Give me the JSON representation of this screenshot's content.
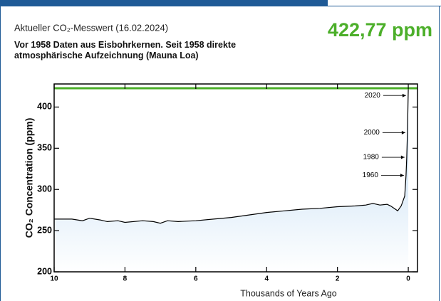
{
  "header": {
    "caption": "Aktueller CO₂-Messwert (16.02.2024)",
    "current_label": "422,77 ppm",
    "note": "Vor 1958 Daten aus Eisbohrkernen. Seit 1958 direkte atmosphärische Aufzeichnung (Mauna Loa)"
  },
  "chart_data": {
    "type": "line",
    "x_label": "Thousands of Years Ago",
    "y_label": "CO₂ Concentration (ppm)",
    "x": [
      10,
      9.5,
      9.2,
      9,
      8.7,
      8.5,
      8.2,
      8,
      7.5,
      7.2,
      7,
      6.8,
      6.5,
      6,
      5.5,
      5,
      4.5,
      4,
      3.5,
      3,
      2.5,
      2,
      1.5,
      1.2,
      1,
      0.8,
      0.6,
      0.5,
      0.4,
      0.3,
      0.2,
      0.1,
      0.064,
      0.044,
      0.024,
      0.004,
      0
    ],
    "series": [
      {
        "name": "CO₂",
        "color": "#000000",
        "values": [
          264,
          264,
          262,
          265,
          263,
          261,
          262,
          260,
          262,
          261,
          259,
          262,
          261,
          262,
          264,
          266,
          269,
          272,
          274,
          276,
          277,
          279,
          280,
          281,
          283,
          281,
          282,
          280,
          277,
          274,
          280,
          292,
          317,
          339,
          369,
          414,
          422.77
        ]
      }
    ],
    "current_value": 422.77,
    "current_color": "#4caf2a",
    "annotations": [
      {
        "text": "2020",
        "x": 0.004,
        "y": 414
      },
      {
        "text": "2000",
        "x": 0.024,
        "y": 369
      },
      {
        "text": "1980",
        "x": 0.044,
        "y": 339
      },
      {
        "text": "1960",
        "x": 0.064,
        "y": 317
      }
    ],
    "xlim": [
      10,
      -0.26
    ],
    "xticks": [
      10,
      8,
      6,
      4,
      2,
      0
    ],
    "ylim": [
      200,
      428
    ],
    "yticks": [
      200,
      250,
      300,
      350,
      400
    ],
    "fill": "#b9d8f2"
  }
}
